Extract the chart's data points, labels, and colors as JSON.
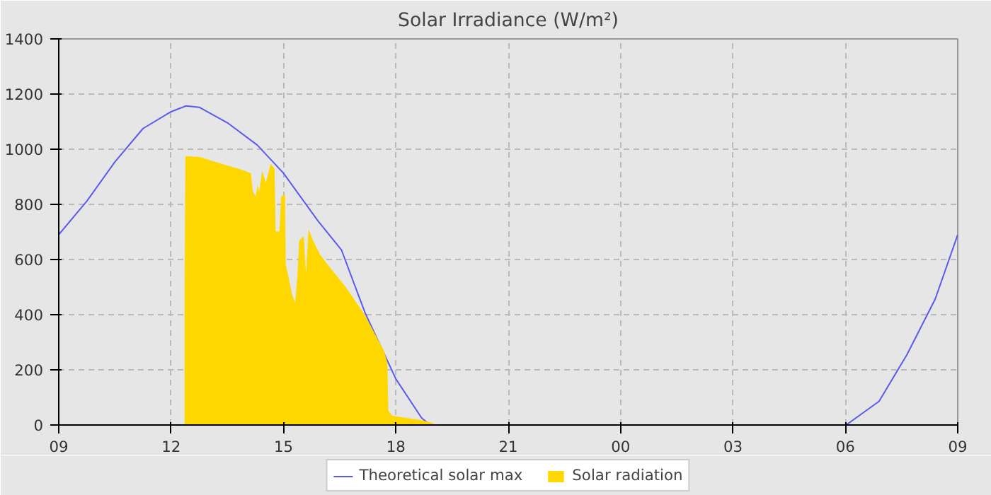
{
  "chart_data": {
    "type": "line",
    "title": "Solar Irradiance (W/m²)",
    "xlim": [
      9,
      33
    ],
    "xticks": [
      {
        "value": 9,
        "label": "09"
      },
      {
        "value": 12,
        "label": "12"
      },
      {
        "value": 15,
        "label": "15"
      },
      {
        "value": 18,
        "label": "18"
      },
      {
        "value": 21,
        "label": "21"
      },
      {
        "value": 24,
        "label": "00"
      },
      {
        "value": 27,
        "label": "03"
      },
      {
        "value": 30,
        "label": "06"
      },
      {
        "value": 33,
        "label": "09"
      }
    ],
    "ylim": [
      0,
      1400
    ],
    "yticks": [
      0,
      200,
      400,
      600,
      800,
      1000,
      1200,
      1400
    ],
    "grid": true,
    "legend": "bottom",
    "line_style": "solid",
    "marker": "none",
    "series": [
      {
        "name": "Theoretical solar max",
        "color": "#5a5aee",
        "x": [
          9,
          9.75,
          10.5,
          11.25,
          12,
          12.4,
          12.75,
          13.5,
          14.3,
          15,
          15.92,
          16.55,
          17.18,
          18,
          18.69,
          18.92,
          19.5,
          21,
          24,
          27,
          30.02,
          30.9,
          31.64,
          32.4,
          33
        ],
        "values": [
          690,
          812,
          954,
          1075,
          1136,
          1157,
          1152,
          1096,
          1015,
          913,
          740,
          634,
          406,
          167,
          25,
          0,
          0,
          0,
          0,
          0,
          0,
          86,
          254,
          457,
          690
        ]
      },
      {
        "name": "Solar radiation",
        "type": "area",
        "color": "#ffd700",
        "x": [
          12.36,
          12.38,
          12.77,
          13.15,
          13.9,
          14.13,
          14.18,
          14.26,
          14.31,
          14.35,
          14.43,
          14.53,
          14.66,
          14.76,
          14.79,
          14.89,
          14.94,
          15.04,
          15.06,
          15.23,
          15.31,
          15.37,
          15.42,
          15.54,
          15.6,
          15.67,
          15.79,
          15.98,
          16.17,
          16.67,
          17.18,
          17.68,
          17.77,
          17.8,
          17.9,
          18.3,
          18.69,
          18.94,
          19.06
        ],
        "values": [
          490,
          975,
          972,
          955,
          925,
          913,
          849,
          828,
          871,
          845,
          921,
          879,
          947,
          930,
          702,
          702,
          828,
          837,
          583,
          473,
          443,
          538,
          668,
          685,
          549,
          710,
          668,
          617,
          583,
          499,
          397,
          270,
          228,
          51,
          34,
          25,
          17,
          9,
          0
        ]
      }
    ]
  }
}
